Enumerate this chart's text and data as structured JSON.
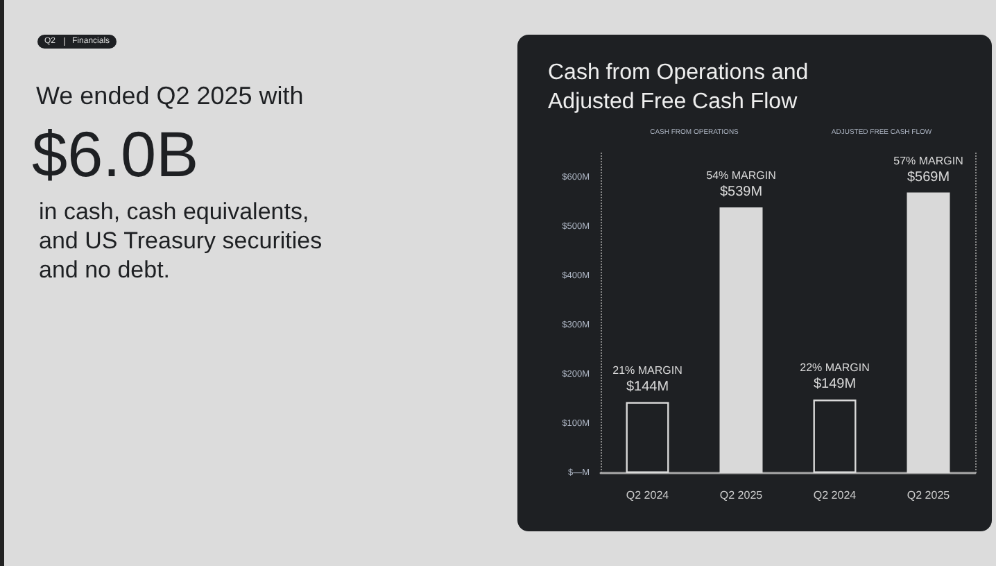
{
  "chart_data": {
    "type": "bar",
    "title": "Cash from Operations and\nAdjusted Free Cash Flow",
    "categories": [
      "Q2 2024",
      "Q2 2025",
      "Q2 2024",
      "Q2 2025"
    ],
    "values": [
      144,
      539,
      149,
      569
    ],
    "colors": [
      "#1e2023",
      "#d9d9d9",
      "#1e2023",
      "#d9d9d9"
    ],
    "value_labels": [
      "$144M",
      "$539M",
      "$149M",
      "$569M"
    ],
    "ylim": [
      0,
      650
    ],
    "yticks": [
      {
        "value": 0,
        "label": "$—M"
      },
      {
        "value": 100,
        "label": "$100M"
      },
      {
        "value": 200,
        "label": "$200M"
      },
      {
        "value": 300,
        "label": "$300M"
      },
      {
        "value": 400,
        "label": "$400M"
      },
      {
        "value": 500,
        "label": "$500M"
      },
      {
        "value": 600,
        "label": "$600M"
      }
    ],
    "grid": false,
    "annotations": [
      "Q2",
      "Financials",
      "We ended Q2 2025 with",
      "$6.0B",
      "in cash, cash equivalents,\nand US Treasury securities\nand no debt.",
      "CASH FROM OPERATIONS",
      "ADJUSTED FREE CASH FLOW",
      "21% MARGIN",
      "54% MARGIN",
      "22% MARGIN",
      "57% MARGIN"
    ]
  }
}
